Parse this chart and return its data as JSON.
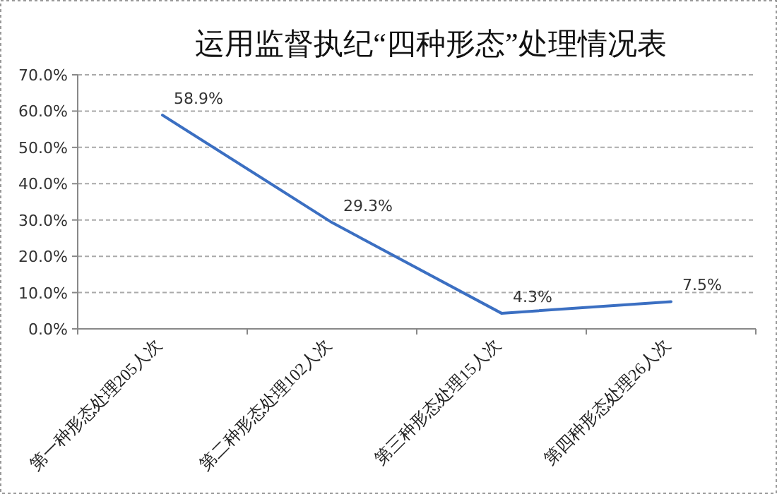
{
  "chart_data": {
    "type": "line",
    "title": "运用监督执纪“四种形态”处理情况表",
    "categories": [
      "第一种形态处理205人次",
      "第二种形态处理102人次",
      "第三种形态处理15人次",
      "第四种形态处理26人次"
    ],
    "series": [
      {
        "color": "#3b6fc2",
        "values": [
          58.9,
          29.3,
          4.3,
          7.5
        ],
        "value_labels": [
          "58.9%",
          "29.3%",
          "4.3%",
          "7.5%"
        ]
      }
    ],
    "ylim": [
      0,
      70
    ],
    "yticks": [
      {
        "value": 0,
        "label": "0.0%"
      },
      {
        "value": 10,
        "label": "10.0%"
      },
      {
        "value": 20,
        "label": "20.0%"
      },
      {
        "value": 30,
        "label": "30.0%"
      },
      {
        "value": 40,
        "label": "40.0%"
      },
      {
        "value": 50,
        "label": "50.0%"
      },
      {
        "value": 60,
        "label": "60.0%"
      },
      {
        "value": 70,
        "label": "70.0%"
      }
    ],
    "grid": "y",
    "marker": "none",
    "line_style": "solid"
  }
}
